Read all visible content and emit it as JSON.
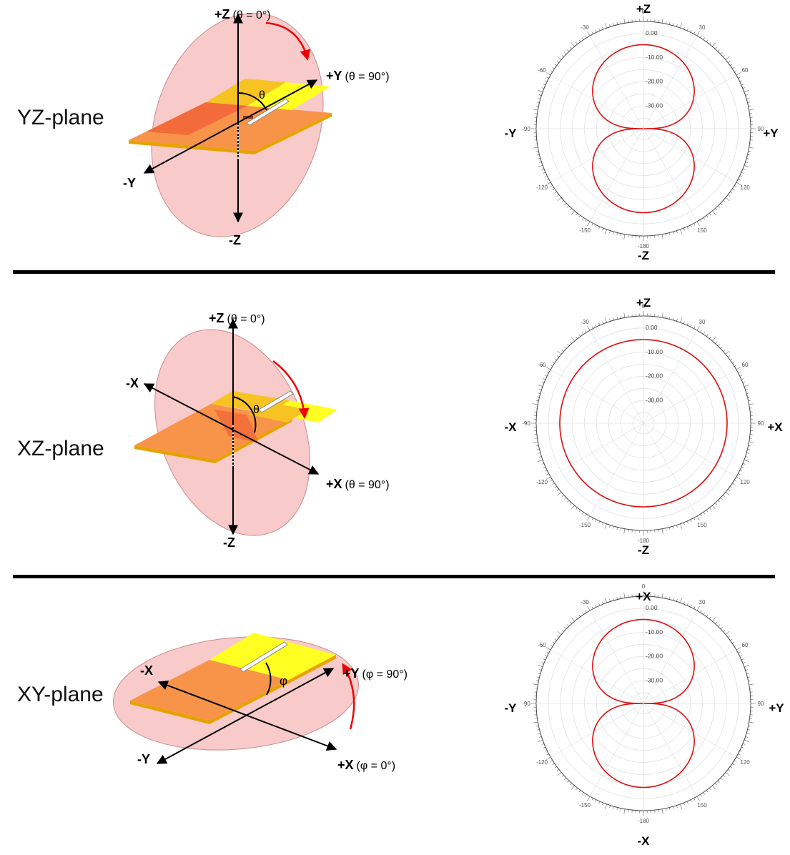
{
  "panels": [
    {
      "plane": "YZ-plane",
      "axes": {
        "top": {
          "name": "+Z",
          "eq": "(θ = 0°)"
        },
        "right": {
          "name": "+Y",
          "eq": "(θ = 90°)"
        },
        "left": {
          "name": "-Y",
          "eq": ""
        },
        "bottom": {
          "name": "-Z",
          "eq": ""
        }
      },
      "angle_symbol": "θ",
      "polar": {
        "top": "+Z",
        "bottom": "-Z",
        "left": "-Y",
        "right": "+Y",
        "pattern": "dipole"
      }
    },
    {
      "plane": "XZ-plane",
      "axes": {
        "top": {
          "name": "+Z",
          "eq": "(θ = 0°)"
        },
        "right": {
          "name": "+X",
          "eq": "(θ = 90°)"
        },
        "left": {
          "name": "-X",
          "eq": ""
        },
        "bottom": {
          "name": "-Z",
          "eq": ""
        }
      },
      "angle_symbol": "θ",
      "polar": {
        "top": "+Z",
        "bottom": "-Z",
        "left": "-X",
        "right": "+X",
        "pattern": "omni"
      }
    },
    {
      "plane": "XY-plane",
      "axes": {
        "top": {
          "name": "+Y",
          "eq": "(φ = 90°)"
        },
        "right": {
          "name": "+X",
          "eq": "(φ = 0°)"
        },
        "left": {
          "name": "-X",
          "eq": ""
        },
        "bottom": {
          "name": "-Y",
          "eq": ""
        }
      },
      "angle_symbol": "φ",
      "polar": {
        "top": "+X",
        "bottom": "-X",
        "left": "-Y",
        "right": "+Y",
        "pattern": "dipole"
      }
    }
  ],
  "polar_scale": {
    "ring_labels": [
      "0.00",
      "-10.00",
      "-20.00",
      "-30.00"
    ],
    "angle_labels": [
      "0",
      "30",
      "60",
      "90",
      "120",
      "150",
      "-180",
      "-150",
      "-120",
      "-90",
      "-60",
      "-30"
    ]
  },
  "colors": {
    "pattern": "#dd1111",
    "ellipse_fill": "#f5b8b8",
    "board_orange": "#f7944a",
    "board_dark": "#f36b3a",
    "board_yellow": "#ffff22",
    "board_gold": "#f6c322"
  }
}
